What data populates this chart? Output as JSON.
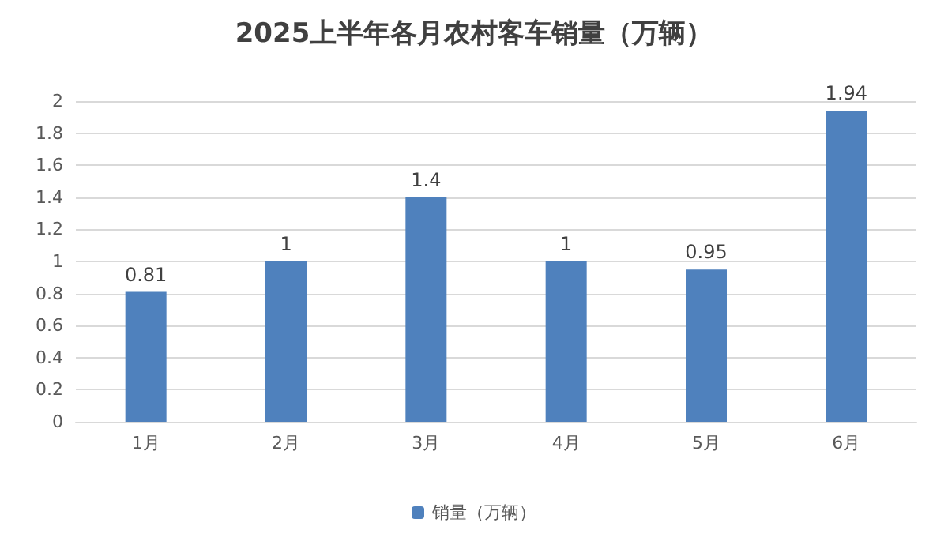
{
  "chart_data": {
    "type": "bar",
    "title": "2025上半年各月农村客车销量（万辆）",
    "categories": [
      "1月",
      "2月",
      "3月",
      "4月",
      "5月",
      "6月"
    ],
    "series": [
      {
        "name": "销量（万辆）",
        "color": "#4f81bd",
        "values": [
          0.81,
          1,
          1.4,
          1,
          0.95,
          1.94
        ]
      }
    ],
    "ylim": [
      0,
      2
    ],
    "yticks": [
      0,
      0.2,
      0.4,
      0.6,
      0.8,
      1,
      1.2,
      1.4,
      1.6,
      1.8,
      2
    ],
    "grid": "y",
    "legend": "bottom",
    "data_labels": true
  }
}
